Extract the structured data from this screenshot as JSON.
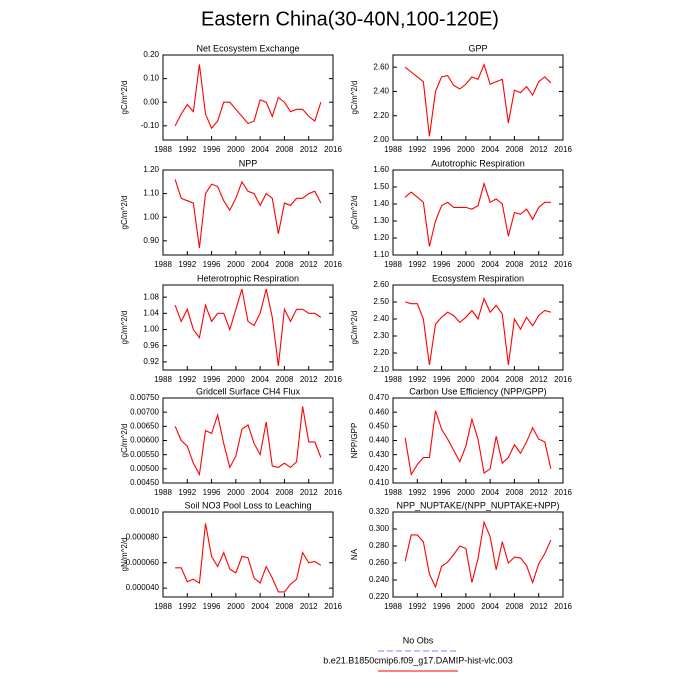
{
  "title": "Eastern China(30-40N,100-120E)",
  "legend": [
    {
      "name": "No Obs",
      "color": "#8080ff",
      "dashed": true
    },
    {
      "name": "b.e21.B1850cmip6.f09_g17.DAMIP-hist-vlc.003",
      "color": "#ff0000",
      "dashed": false
    }
  ],
  "chart_data": [
    {
      "type": "line",
      "title": "Net Ecosystem Exchange",
      "ylabel": "gC/m^2/d",
      "color": "#ff0000",
      "x": [
        1990,
        1991,
        1992,
        1993,
        1994,
        1995,
        1996,
        1997,
        1998,
        1999,
        2000,
        2001,
        2002,
        2003,
        2004,
        2005,
        2006,
        2007,
        2008,
        2009,
        2010,
        2011,
        2012,
        2013,
        2014
      ],
      "values": [
        -0.1,
        -0.05,
        -0.01,
        -0.04,
        0.16,
        -0.05,
        -0.11,
        -0.08,
        0.0,
        0.0,
        -0.03,
        -0.06,
        -0.09,
        -0.08,
        0.01,
        0.0,
        -0.06,
        0.02,
        0.0,
        -0.04,
        -0.03,
        -0.03,
        -0.06,
        -0.08,
        0.0
      ],
      "xlim": [
        1988,
        2016
      ],
      "xticks": [
        1988,
        1992,
        1996,
        2000,
        2004,
        2008,
        2012,
        2016
      ],
      "ylim": [
        -0.16,
        0.2
      ],
      "yticks": [
        {
          "value": -0.1,
          "label": "-0.10"
        },
        {
          "value": 0,
          "label": "0.00"
        },
        {
          "value": 0.1,
          "label": "0.10"
        },
        {
          "value": 0.2,
          "label": "0.20"
        }
      ]
    },
    {
      "type": "line",
      "title": "GPP",
      "ylabel": "gC/m^2/d",
      "color": "#ff0000",
      "x": [
        1990,
        1991,
        1992,
        1993,
        1994,
        1995,
        1996,
        1997,
        1998,
        1999,
        2000,
        2001,
        2002,
        2003,
        2004,
        2005,
        2006,
        2007,
        2008,
        2009,
        2010,
        2011,
        2012,
        2013,
        2014
      ],
      "values": [
        2.6,
        2.56,
        2.52,
        2.48,
        2.03,
        2.4,
        2.52,
        2.53,
        2.45,
        2.42,
        2.46,
        2.52,
        2.5,
        2.62,
        2.46,
        2.48,
        2.5,
        2.14,
        2.41,
        2.39,
        2.44,
        2.37,
        2.48,
        2.52,
        2.47
      ],
      "xlim": [
        1988,
        2016
      ],
      "xticks": [
        1988,
        1992,
        1996,
        2000,
        2004,
        2008,
        2012,
        2016
      ],
      "ylim": [
        2.0,
        2.7
      ],
      "yticks": [
        {
          "value": 2.0,
          "label": "2.00"
        },
        {
          "value": 2.2,
          "label": "2.20"
        },
        {
          "value": 2.4,
          "label": "2.40"
        },
        {
          "value": 2.6,
          "label": "2.60"
        }
      ]
    },
    {
      "type": "line",
      "title": "NPP",
      "ylabel": "gC/m^2/d",
      "color": "#ff0000",
      "x": [
        1990,
        1991,
        1992,
        1993,
        1994,
        1995,
        1996,
        1997,
        1998,
        1999,
        2000,
        2001,
        2002,
        2003,
        2004,
        2005,
        2006,
        2007,
        2008,
        2009,
        2010,
        2011,
        2012,
        2013,
        2014
      ],
      "values": [
        1.16,
        1.08,
        1.07,
        1.06,
        0.87,
        1.1,
        1.14,
        1.13,
        1.07,
        1.03,
        1.08,
        1.15,
        1.11,
        1.1,
        1.05,
        1.1,
        1.08,
        0.93,
        1.06,
        1.05,
        1.08,
        1.08,
        1.1,
        1.11,
        1.06
      ],
      "xlim": [
        1988,
        2016
      ],
      "xticks": [
        1988,
        1992,
        1996,
        2000,
        2004,
        2008,
        2012,
        2016
      ],
      "ylim": [
        0.84,
        1.2
      ],
      "yticks": [
        {
          "value": 0.9,
          "label": "0.90"
        },
        {
          "value": 1.0,
          "label": "1.00"
        },
        {
          "value": 1.1,
          "label": "1.10"
        },
        {
          "value": 1.2,
          "label": "1.20"
        }
      ]
    },
    {
      "type": "line",
      "title": "Autotrophic Respiration",
      "ylabel": "gC/m^2/d",
      "color": "#ff0000",
      "x": [
        1990,
        1991,
        1992,
        1993,
        1994,
        1995,
        1996,
        1997,
        1998,
        1999,
        2000,
        2001,
        2002,
        2003,
        2004,
        2005,
        2006,
        2007,
        2008,
        2009,
        2010,
        2011,
        2012,
        2013,
        2014
      ],
      "values": [
        1.44,
        1.47,
        1.44,
        1.41,
        1.15,
        1.3,
        1.39,
        1.41,
        1.38,
        1.38,
        1.38,
        1.37,
        1.39,
        1.52,
        1.41,
        1.43,
        1.4,
        1.21,
        1.35,
        1.34,
        1.37,
        1.31,
        1.38,
        1.41,
        1.41
      ],
      "xlim": [
        1988,
        2016
      ],
      "xticks": [
        1988,
        1992,
        1996,
        2000,
        2004,
        2008,
        2012,
        2016
      ],
      "ylim": [
        1.1,
        1.6
      ],
      "yticks": [
        {
          "value": 1.1,
          "label": "1.10"
        },
        {
          "value": 1.2,
          "label": "1.20"
        },
        {
          "value": 1.3,
          "label": "1.30"
        },
        {
          "value": 1.4,
          "label": "1.40"
        },
        {
          "value": 1.5,
          "label": "1.50"
        },
        {
          "value": 1.6,
          "label": "1.60"
        }
      ]
    },
    {
      "type": "line",
      "title": "Heterotrophic Respiration",
      "ylabel": "gC/m^2/d",
      "color": "#ff0000",
      "x": [
        1990,
        1991,
        1992,
        1993,
        1994,
        1995,
        1996,
        1997,
        1998,
        1999,
        2000,
        2001,
        2002,
        2003,
        2004,
        2005,
        2006,
        2007,
        2008,
        2009,
        2010,
        2011,
        2012,
        2013,
        2014
      ],
      "values": [
        1.06,
        1.02,
        1.05,
        1.0,
        0.98,
        1.06,
        1.02,
        1.04,
        1.04,
        1.0,
        1.05,
        1.1,
        1.02,
        1.01,
        1.04,
        1.1,
        1.03,
        0.91,
        1.05,
        1.02,
        1.05,
        1.05,
        1.04,
        1.04,
        1.03
      ],
      "xlim": [
        1988,
        2016
      ],
      "xticks": [
        1988,
        1992,
        1996,
        2000,
        2004,
        2008,
        2012,
        2016
      ],
      "ylim": [
        0.9,
        1.11
      ],
      "yticks": [
        0.92,
        0.96,
        {
          "value": 1.0,
          "label": "1.00"
        },
        1.04,
        1.08
      ]
    },
    {
      "type": "line",
      "title": "Ecosystem Respiration",
      "ylabel": "gC/m^2/d",
      "color": "#ff0000",
      "x": [
        1990,
        1991,
        1992,
        1993,
        1994,
        1995,
        1996,
        1997,
        1998,
        1999,
        2000,
        2001,
        2002,
        2003,
        2004,
        2005,
        2006,
        2007,
        2008,
        2009,
        2010,
        2011,
        2012,
        2013,
        2014
      ],
      "values": [
        2.5,
        2.49,
        2.49,
        2.4,
        2.13,
        2.37,
        2.41,
        2.44,
        2.42,
        2.38,
        2.41,
        2.45,
        2.4,
        2.52,
        2.44,
        2.48,
        2.43,
        2.13,
        2.4,
        2.34,
        2.41,
        2.36,
        2.42,
        2.45,
        2.44
      ],
      "xlim": [
        1988,
        2016
      ],
      "xticks": [
        1988,
        1992,
        1996,
        2000,
        2004,
        2008,
        2012,
        2016
      ],
      "ylim": [
        2.1,
        2.6
      ],
      "yticks": [
        {
          "value": 2.1,
          "label": "2.10"
        },
        {
          "value": 2.2,
          "label": "2.20"
        },
        {
          "value": 2.3,
          "label": "2.30"
        },
        {
          "value": 2.4,
          "label": "2.40"
        },
        {
          "value": 2.5,
          "label": "2.50"
        },
        {
          "value": 2.6,
          "label": "2.60"
        }
      ]
    },
    {
      "type": "line",
      "title": "Gridcell Surface CH4 Flux",
      "ylabel": "gC/m^2/d",
      "color": "#ff0000",
      "x": [
        1990,
        1991,
        1992,
        1993,
        1994,
        1995,
        1996,
        1997,
        1998,
        1999,
        2000,
        2001,
        2002,
        2003,
        2004,
        2005,
        2006,
        2007,
        2008,
        2009,
        2010,
        2011,
        2012,
        2013,
        2014
      ],
      "values": [
        0.0065,
        0.006,
        0.0058,
        0.0052,
        0.0048,
        0.00635,
        0.00625,
        0.0069,
        0.0059,
        0.00505,
        0.00545,
        0.0064,
        0.00655,
        0.0059,
        0.0055,
        0.00665,
        0.0051,
        0.00505,
        0.0052,
        0.00505,
        0.00525,
        0.0072,
        0.00595,
        0.00595,
        0.0054
      ],
      "xlim": [
        1988,
        2016
      ],
      "xticks": [
        1988,
        1992,
        1996,
        2000,
        2004,
        2008,
        2012,
        2016
      ],
      "ylim": [
        0.0045,
        0.0075
      ],
      "yticks": [
        {
          "value": 0.0045,
          "label": "0.00450"
        },
        {
          "value": 0.005,
          "label": "0.00500"
        },
        {
          "value": 0.0055,
          "label": "0.00550"
        },
        {
          "value": 0.006,
          "label": "0.00600"
        },
        {
          "value": 0.0065,
          "label": "0.00650"
        },
        {
          "value": 0.007,
          "label": "0.00700"
        },
        {
          "value": 0.0075,
          "label": "0.00750"
        }
      ]
    },
    {
      "type": "line",
      "title": "Carbon Use Efficiency (NPP/GPP)",
      "ylabel": "NPP/GPP",
      "color": "#ff0000",
      "x": [
        1990,
        1991,
        1992,
        1993,
        1994,
        1995,
        1996,
        1997,
        1998,
        1999,
        2000,
        2001,
        2002,
        2003,
        2004,
        2005,
        2006,
        2007,
        2008,
        2009,
        2010,
        2011,
        2012,
        2013,
        2014
      ],
      "values": [
        0.442,
        0.416,
        0.423,
        0.428,
        0.428,
        0.461,
        0.448,
        0.441,
        0.433,
        0.425,
        0.436,
        0.455,
        0.441,
        0.417,
        0.42,
        0.443,
        0.424,
        0.428,
        0.437,
        0.431,
        0.439,
        0.449,
        0.441,
        0.439,
        0.42
      ],
      "xlim": [
        1988,
        2016
      ],
      "xticks": [
        1988,
        1992,
        1996,
        2000,
        2004,
        2008,
        2012,
        2016
      ],
      "ylim": [
        0.41,
        0.47
      ],
      "yticks": [
        {
          "value": 0.41,
          "label": "0.410"
        },
        {
          "value": 0.42,
          "label": "0.420"
        },
        {
          "value": 0.43,
          "label": "0.430"
        },
        {
          "value": 0.44,
          "label": "0.440"
        },
        {
          "value": 0.45,
          "label": "0.450"
        },
        {
          "value": 0.46,
          "label": "0.460"
        },
        {
          "value": 0.47,
          "label": "0.470"
        }
      ]
    },
    {
      "type": "line",
      "title": "Soil NO3 Pool Loss to Leaching",
      "ylabel": "gN/m^2/d",
      "color": "#ff0000",
      "x": [
        1990,
        1991,
        1992,
        1993,
        1994,
        1995,
        1996,
        1997,
        1998,
        1999,
        2000,
        2001,
        2002,
        2003,
        2004,
        2005,
        2006,
        2007,
        2008,
        2009,
        2010,
        2011,
        2012,
        2013,
        2014
      ],
      "values": [
        5.6e-05,
        5.6e-05,
        4.5e-05,
        4.7e-05,
        4.4e-05,
        9.1e-05,
        6.5e-05,
        5.7e-05,
        6.8e-05,
        5.5e-05,
        5.2e-05,
        6.5e-05,
        6.4e-05,
        4.8e-05,
        4.4e-05,
        5.7e-05,
        4.8e-05,
        3.7e-05,
        3.7e-05,
        4.3e-05,
        4.7e-05,
        6.8e-05,
        6e-05,
        6.1e-05,
        5.8e-05
      ],
      "xlim": [
        1988,
        2016
      ],
      "xticks": [
        1988,
        1992,
        1996,
        2000,
        2004,
        2008,
        2012,
        2016
      ],
      "ylim": [
        3.3e-05,
        0.0001
      ],
      "yticks": [
        {
          "value": 4e-05,
          "label": "0.000040"
        },
        {
          "value": 6e-05,
          "label": "0.000060"
        },
        {
          "value": 8e-05,
          "label": "0.000080"
        },
        {
          "value": 0.0001,
          "label": "0.00010"
        }
      ]
    },
    {
      "type": "line",
      "title": "NPP_NUPTAKE/(NPP_NUPTAKE+NPP)",
      "ylabel": "NA",
      "color": "#ff0000",
      "x": [
        1990,
        1991,
        1992,
        1993,
        1994,
        1995,
        1996,
        1997,
        1998,
        1999,
        2000,
        2001,
        2002,
        2003,
        2004,
        2005,
        2006,
        2007,
        2008,
        2009,
        2010,
        2011,
        2012,
        2013,
        2014
      ],
      "values": [
        0.262,
        0.293,
        0.293,
        0.285,
        0.247,
        0.232,
        0.256,
        0.261,
        0.27,
        0.28,
        0.277,
        0.237,
        0.265,
        0.308,
        0.291,
        0.252,
        0.285,
        0.26,
        0.267,
        0.266,
        0.257,
        0.237,
        0.259,
        0.271,
        0.287
      ],
      "xlim": [
        1988,
        2016
      ],
      "xticks": [
        1988,
        1992,
        1996,
        2000,
        2004,
        2008,
        2012,
        2016
      ],
      "ylim": [
        0.22,
        0.32
      ],
      "yticks": [
        {
          "value": 0.22,
          "label": "0.220"
        },
        {
          "value": 0.24,
          "label": "0.240"
        },
        {
          "value": 0.26,
          "label": "0.260"
        },
        {
          "value": 0.28,
          "label": "0.280"
        },
        {
          "value": 0.3,
          "label": "0.300"
        },
        {
          "value": 0.32,
          "label": "0.320"
        }
      ]
    }
  ]
}
